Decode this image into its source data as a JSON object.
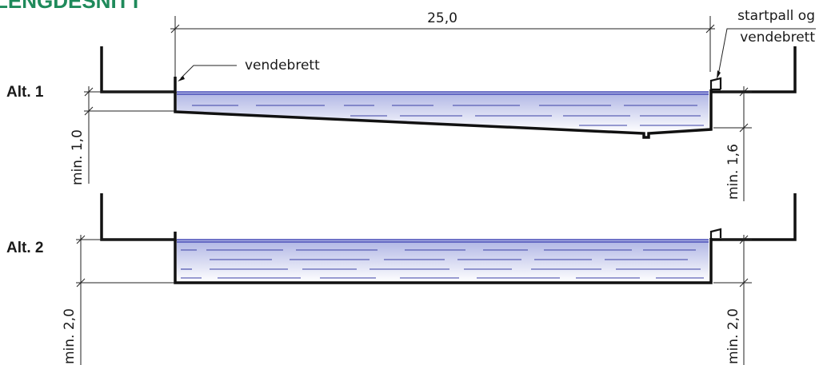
{
  "heading": "LENGDESNITT",
  "colors": {
    "heading": "#1f8a5b",
    "water_top": "#aeb4e4",
    "water_bottom": "#ffffff",
    "wall": "#111111",
    "ripple": "#3b40a6"
  },
  "dimensions": {
    "length": "25,0"
  },
  "labels": {
    "vendebrett": "vendebrett",
    "startpall_line1": "startpall og",
    "startpall_line2": "vendebrett"
  },
  "alt1": {
    "label": "Alt. 1",
    "left_depth": "min. 1,0",
    "right_depth": "min. 1,6"
  },
  "alt2": {
    "label": "Alt. 2",
    "left_depth": "min. 2,0",
    "right_depth": "min. 2,0"
  }
}
